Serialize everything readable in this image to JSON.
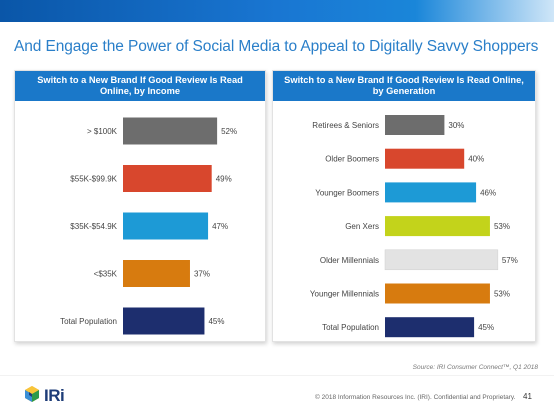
{
  "title": "And Engage the Power of Social Media to Appeal to Digitally Savvy Shoppers",
  "chart_data": [
    {
      "type": "bar",
      "orientation": "horizontal",
      "title": "Switch to a New Brand If Good Review Is Read Online, by Income",
      "categories": [
        "> $100K",
        "$55K-$99.9K",
        "$35K-$54.9K",
        "<$35K",
        "Total Population"
      ],
      "values": [
        52,
        49,
        47,
        37,
        45
      ],
      "value_labels": [
        "52%",
        "49%",
        "47%",
        "37%",
        "45%"
      ],
      "colors": [
        "#6d6d6d",
        "#d8472d",
        "#1d9ad6",
        "#d77b0f",
        "#1d2e6e"
      ],
      "xlim": [
        0,
        100
      ],
      "grid": false
    },
    {
      "type": "bar",
      "orientation": "horizontal",
      "title": "Switch to a New Brand If Good Review Is Read Online, by Generation",
      "categories": [
        "Retirees & Seniors",
        "Older Boomers",
        "Younger Boomers",
        "Gen Xers",
        "Older Millennials",
        "Younger Millennials",
        "Total Population"
      ],
      "values": [
        30,
        40,
        46,
        53,
        57,
        53,
        45
      ],
      "value_labels": [
        "30%",
        "40%",
        "46%",
        "53%",
        "57%",
        "53%",
        "45%"
      ],
      "colors": [
        "#6d6d6d",
        "#d8472d",
        "#1d9ad6",
        "#c3d31b",
        "#e3e3e3",
        "#d77b0f",
        "#1d2e6e"
      ],
      "xlim": [
        0,
        100
      ],
      "grid": false
    }
  ],
  "source": "Source: IRI Consumer Connect™, Q1 2018",
  "copyright": "© 2018 Information Resources Inc. (IRI). Confidential and Proprietary.",
  "page_number": "41",
  "logo_text": "IRi"
}
